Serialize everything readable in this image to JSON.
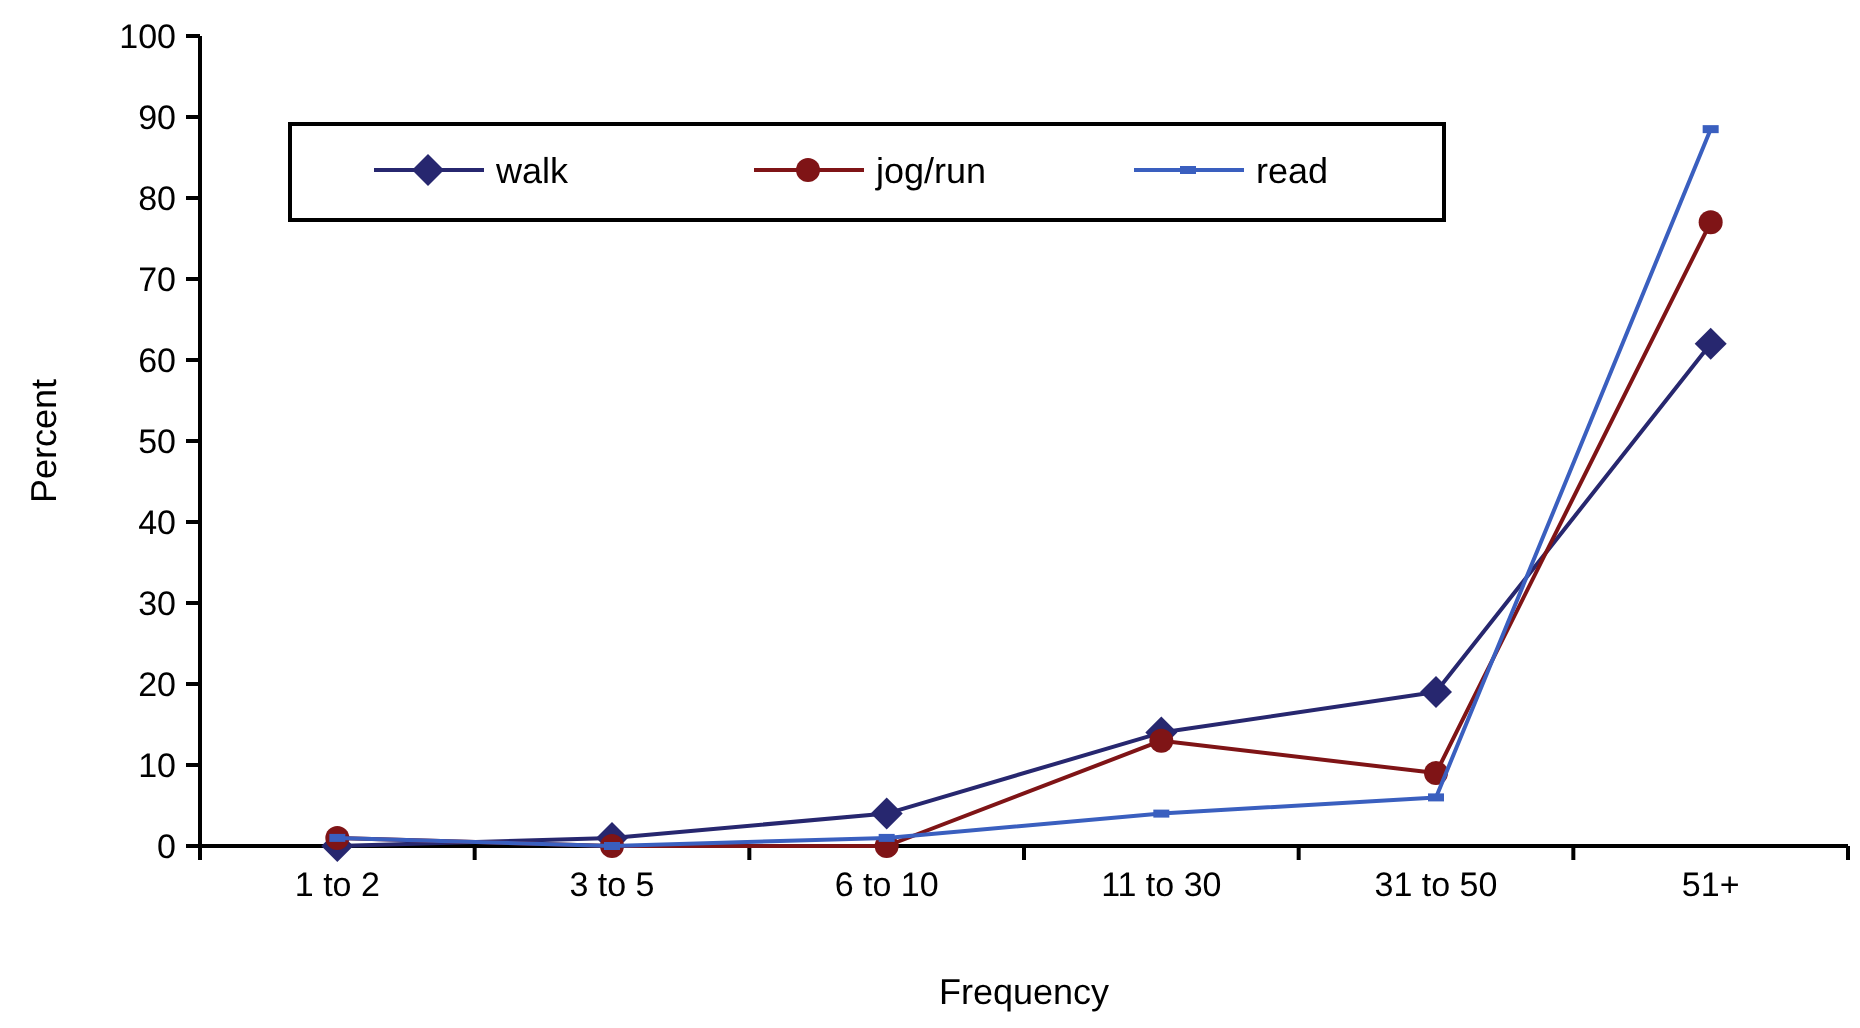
{
  "chart_data": {
    "type": "line",
    "xlabel": "Frequency",
    "ylabel": "Percent",
    "categories": [
      "1 to 2",
      "3 to 5",
      "6 to 10",
      "11 to 30",
      "31 to 50",
      "51+"
    ],
    "series": [
      {
        "name": "walk",
        "color": "#27276f",
        "marker": "diamond",
        "values": [
          0,
          1,
          4,
          14,
          19,
          62
        ]
      },
      {
        "name": "jog/run",
        "color": "#7f1416",
        "marker": "circle",
        "values": [
          1,
          0,
          0,
          13,
          9,
          77
        ]
      },
      {
        "name": "read",
        "color": "#3a5fbf",
        "marker": "square",
        "values": [
          1,
          0,
          1,
          4,
          6,
          88.5
        ]
      }
    ],
    "ylim": [
      0,
      100
    ],
    "yticks": [
      0,
      10,
      20,
      30,
      40,
      50,
      60,
      70,
      80,
      90,
      100
    ],
    "grid": false,
    "legend": "top left"
  }
}
